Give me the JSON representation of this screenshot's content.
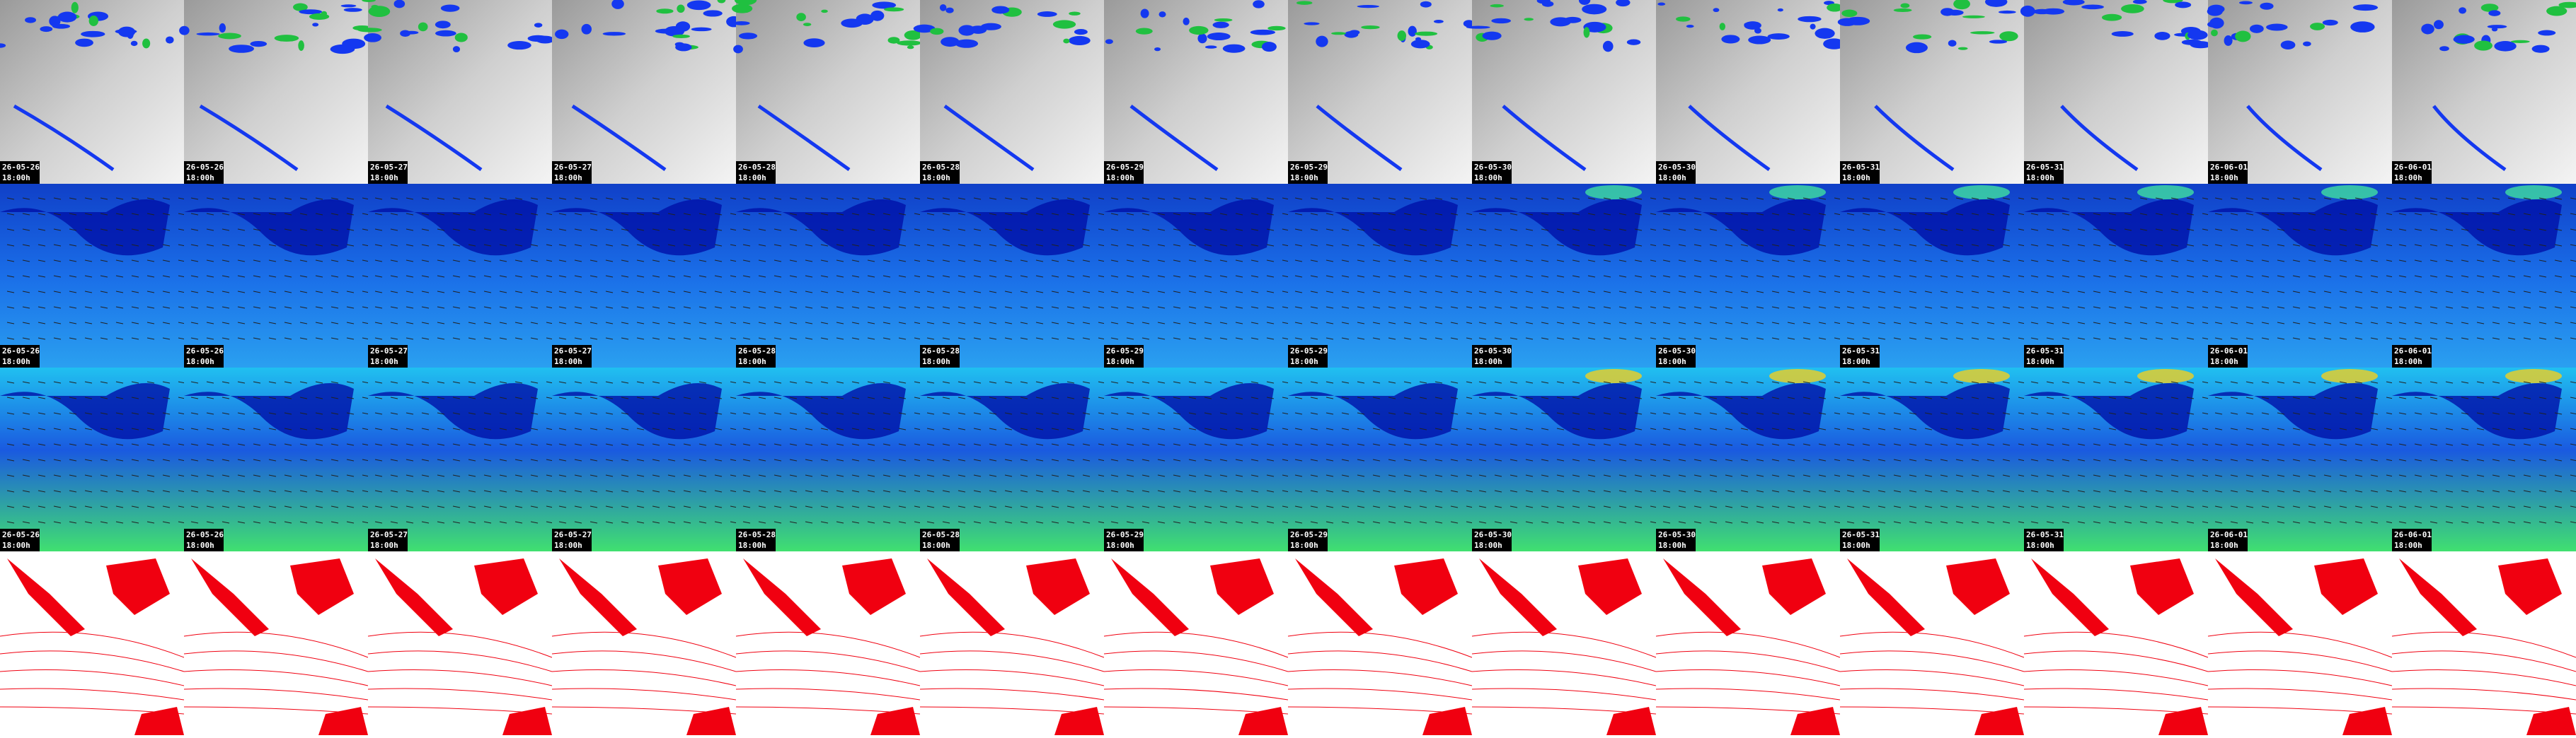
{
  "columns": [
    {
      "date": "26-05-26",
      "time": "18:00h"
    },
    {
      "date": "26-05-26",
      "time": "18:00h"
    },
    {
      "date": "26-05-27",
      "time": "18:00h"
    },
    {
      "date": "26-05-27",
      "time": "18:00h"
    },
    {
      "date": "26-05-28",
      "time": "18:00h"
    },
    {
      "date": "26-05-28",
      "time": "18:00h"
    },
    {
      "date": "26-05-29",
      "time": "18:00h"
    },
    {
      "date": "26-05-29",
      "time": "18:00h"
    },
    {
      "date": "26-05-30",
      "time": "18:00h"
    },
    {
      "date": "26-05-30",
      "time": "18:00h"
    },
    {
      "date": "26-05-31",
      "time": "18:00h"
    },
    {
      "date": "26-05-31",
      "time": "18:00h"
    },
    {
      "date": "26-06-01",
      "time": "18:00h"
    },
    {
      "date": "26-06-01",
      "time": "18:00h"
    }
  ]
}
